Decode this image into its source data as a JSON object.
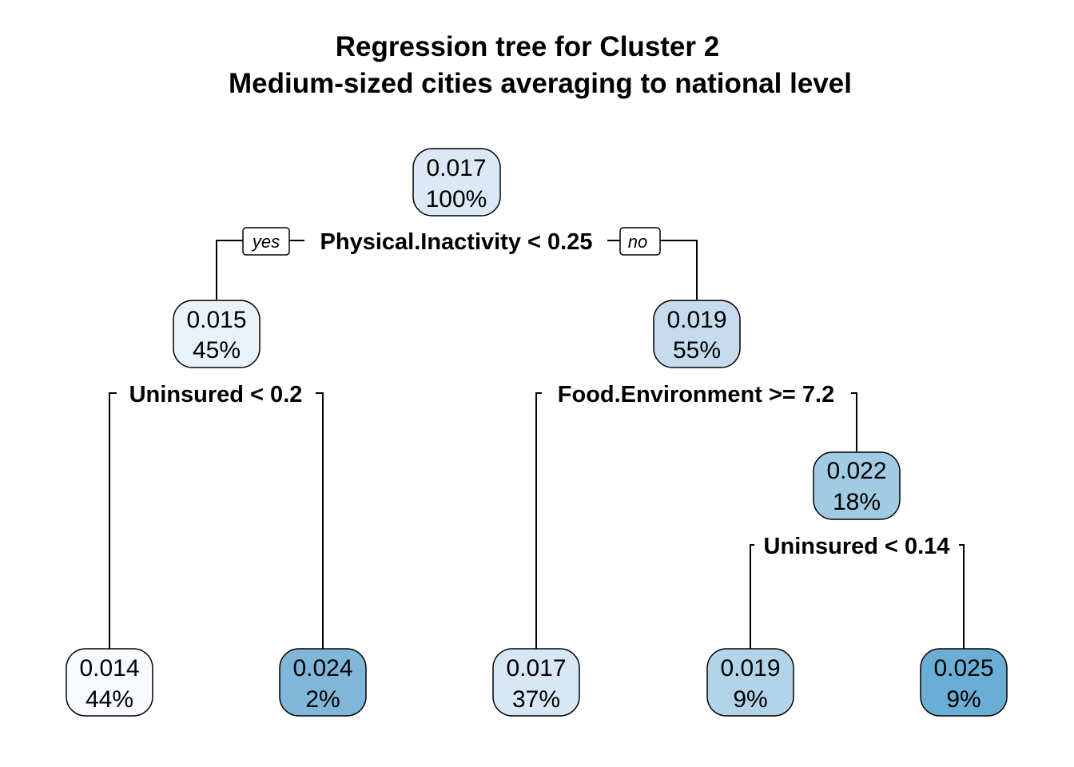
{
  "title": {
    "line1": "Regression tree for Cluster 2",
    "line2": "Medium-sized cities averaging to national level"
  },
  "tags": {
    "yes": "yes",
    "no": "no"
  },
  "nodes": [
    {
      "id": "root",
      "value": "0.017",
      "pct": "100%",
      "fill": "#dbe9f6"
    },
    {
      "id": "n2",
      "value": "0.015",
      "pct": "45%",
      "fill": "#eaf2fb"
    },
    {
      "id": "n3",
      "value": "0.019",
      "pct": "55%",
      "fill": "#c6dbef"
    },
    {
      "id": "n7",
      "value": "0.022",
      "pct": "18%",
      "fill": "#a1cbe2"
    },
    {
      "id": "l4",
      "value": "0.014",
      "pct": "44%",
      "fill": "#f7fbff"
    },
    {
      "id": "l5",
      "value": "0.024",
      "pct": "2%",
      "fill": "#7fb6da"
    },
    {
      "id": "l6",
      "value": "0.017",
      "pct": "37%",
      "fill": "#d8e7f5"
    },
    {
      "id": "l14",
      "value": "0.019",
      "pct": "9%",
      "fill": "#b3d3e8"
    },
    {
      "id": "l15",
      "value": "0.025",
      "pct": "9%",
      "fill": "#6aaed6"
    }
  ],
  "splits": [
    {
      "id": "s1",
      "label": "Physical.Inactivity < 0.25"
    },
    {
      "id": "s2",
      "label": "Uninsured < 0.2"
    },
    {
      "id": "s3",
      "label": "Food.Environment >= 7.2"
    },
    {
      "id": "s7",
      "label": "Uninsured < 0.14"
    }
  ]
}
